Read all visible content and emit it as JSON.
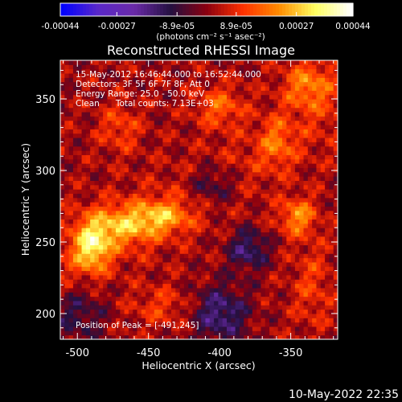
{
  "chart_data": {
    "type": "heatmap",
    "title": "Reconstructed RHESSI Image",
    "xlabel": "Heliocentric X (arcsec)",
    "ylabel": "Heliocentric Y (arcsec)",
    "xlim": [
      -512,
      -317
    ],
    "ylim": [
      182,
      377
    ],
    "x_ticks": [
      -500,
      -450,
      -400,
      -350
    ],
    "y_ticks": [
      200,
      250,
      300,
      350
    ],
    "colorbar": {
      "ticks": [
        "-0.00044",
        "-0.00027",
        "-8.9e-05",
        "8.9e-05",
        "0.00027",
        "0.00044"
      ],
      "tick_values": [
        -0.00044,
        -0.00027,
        -8.9e-05,
        8.9e-05,
        0.00027,
        0.00044
      ],
      "range": [
        -0.00044,
        0.00044
      ],
      "units": "(photons cm⁻² s⁻¹ asec⁻²)"
    },
    "annotations": [
      "15-May-2012 16:46:44.000 to 16:52:44.000",
      "Detectors: 3F 5F 6F 7F 8F, Att 0",
      "Energy Range: 25.0 - 50.0 keV",
      "Clean      Total counts: 7.13E+03"
    ],
    "peak_label": "Position of Peak = [-491,245]",
    "peak": [
      -491,
      245
    ],
    "colors": {
      "colormap": [
        "#0000ff",
        "#5a28c8",
        "#6a2aa8",
        "#241040",
        "#8a0010",
        "#ff3000",
        "#ff8c00",
        "#ffff60",
        "#ffffff"
      ]
    }
  },
  "footer": {
    "date": "10-May-2022 22:35"
  }
}
